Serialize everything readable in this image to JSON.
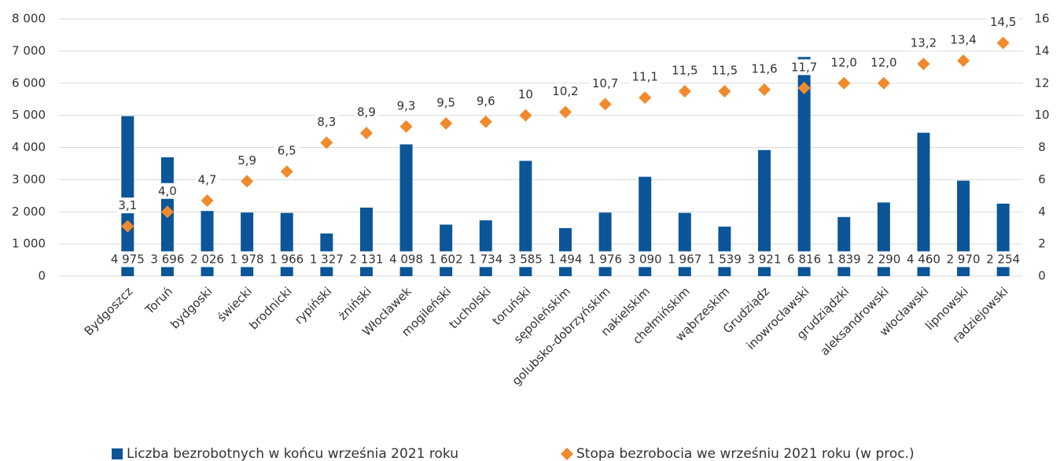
{
  "chart_data": {
    "type": "bar",
    "categories": [
      "Bydgoszcz",
      "Toruń",
      "bydgoski",
      "świecki",
      "brodnicki",
      "rypiński",
      "żniński",
      "Włocławek",
      "mogileński",
      "tucholski",
      "toruński",
      "sępoleńskim",
      "golubsko-dobrzyńskim",
      "nakielskim",
      "chełmińskim",
      "wąbrzeskim",
      "Grudziądz",
      "inowrocławski",
      "grudziądzki",
      "aleksandrowski",
      "włocławski",
      "lipnowski",
      "radziejowski"
    ],
    "series": [
      {
        "name": "Liczba bezrobotnych w końcu września 2021 roku",
        "type": "bar",
        "color": "#0b5598",
        "values": [
          4975,
          3696,
          2026,
          1978,
          1966,
          1327,
          2131,
          4098,
          1602,
          1734,
          3585,
          1494,
          1976,
          3090,
          1967,
          1539,
          3921,
          6816,
          1839,
          2290,
          4460,
          2970,
          2254
        ],
        "value_labels": [
          "4 975",
          "3 696",
          "2 026",
          "1 978",
          "1 966",
          "1 327",
          "2 131",
          "4 098",
          "1 602",
          "1 734",
          "3 585",
          "1 494",
          "1 976",
          "3 090",
          "1 967",
          "1 539",
          "3 921",
          "6 816",
          "1 839",
          "2 290",
          "4 460",
          "2 970",
          "2 254"
        ]
      },
      {
        "name": "Stopa bezrobocia we wrześniu 2021 roku (w proc.)",
        "type": "scatter",
        "axis": "y2",
        "color": "#f08a2c",
        "values": [
          3.1,
          4.0,
          4.7,
          5.9,
          6.5,
          8.3,
          8.9,
          9.3,
          9.5,
          9.6,
          10,
          10.2,
          10.7,
          11.1,
          11.5,
          11.5,
          11.6,
          11.7,
          12.0,
          12.0,
          13.2,
          13.4,
          14.5
        ],
        "value_labels": [
          "3,1",
          "4,0",
          "4,7",
          "5,9",
          "6,5",
          "8,3",
          "8,9",
          "9,3",
          "9,5",
          "9,6",
          "10",
          "10,2",
          "10,7",
          "11,1",
          "11,5",
          "11,5",
          "11,6",
          "11,7",
          "12,0",
          "12,0",
          "13,2",
          "13,4",
          "14,5"
        ]
      }
    ],
    "ylim": [
      0,
      8000
    ],
    "yticks": [
      0,
      {
        "value": 1000,
        "label": "1 000"
      },
      {
        "value": 2000,
        "label": "2 000"
      },
      {
        "value": 3000,
        "label": "3 000"
      },
      {
        "value": 4000,
        "label": "4 000"
      },
      {
        "value": 5000,
        "label": "5 000"
      },
      {
        "value": 6000,
        "label": "6 000"
      },
      {
        "value": 7000,
        "label": "7 000"
      },
      {
        "value": 8000,
        "label": "8 000"
      }
    ],
    "y2lim": [
      0,
      16
    ],
    "y2ticks": [
      0,
      2,
      4,
      6,
      8,
      10,
      12,
      14,
      16
    ],
    "grid": true,
    "legend": "bottom"
  }
}
